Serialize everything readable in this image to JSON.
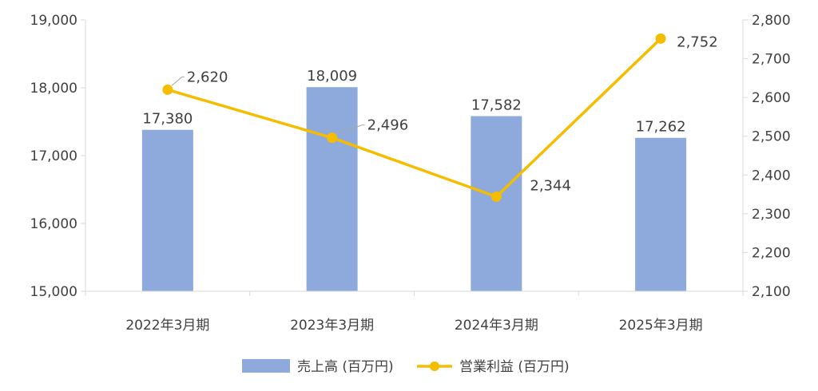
{
  "chart_data": {
    "type": "bar+line",
    "categories": [
      "2022年3月期",
      "2023年3月期",
      "2024年3月期",
      "2025年3月期"
    ],
    "series": [
      {
        "name": "売上高 (百万円)",
        "type": "bar",
        "axis": "left",
        "values": [
          17380,
          18009,
          17582,
          17262
        ],
        "labels": [
          "17,380",
          "18,009",
          "17,582",
          "17,262"
        ]
      },
      {
        "name": "営業利益 (百万円)",
        "type": "line",
        "axis": "right",
        "values": [
          2620,
          2496,
          2344,
          2752
        ],
        "labels": [
          "2,620",
          "2,496",
          "2,344",
          "2,752"
        ]
      }
    ],
    "y_left": {
      "min": 15000,
      "max": 19000,
      "ticks": [
        "15,000",
        "16,000",
        "17,000",
        "18,000",
        "19,000"
      ]
    },
    "y_right": {
      "min": 2100,
      "max": 2800,
      "ticks": [
        "2,100",
        "2,200",
        "2,300",
        "2,400",
        "2,500",
        "2,600",
        "2,700",
        "2,800"
      ]
    },
    "grid": false,
    "legend": "bottom-center",
    "colors": {
      "bar": "#8eaadc",
      "line": "#f5bd00",
      "axis": "#d9d9d9",
      "text": "#404040"
    }
  }
}
